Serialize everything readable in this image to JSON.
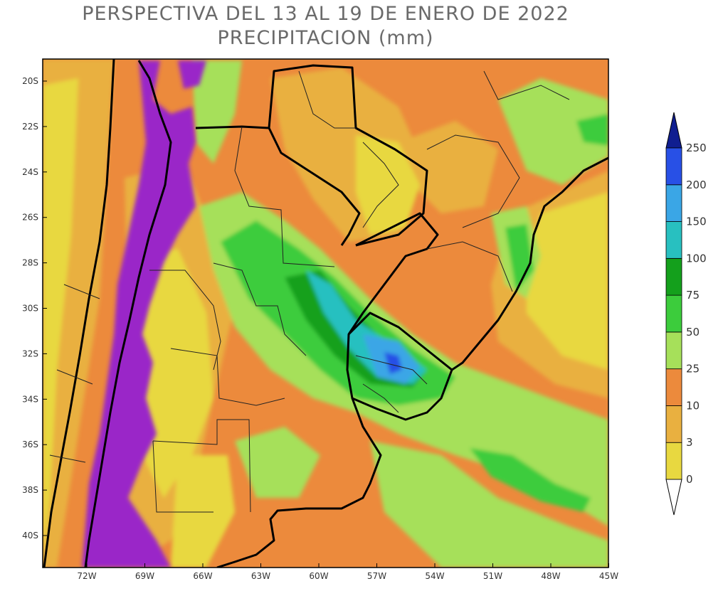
{
  "title": {
    "line1": "PERSPECTIVA DEL 13 AL 19 DE ENERO DE 2022",
    "line2": "PRECIPITACION (mm)"
  },
  "map": {
    "lat_ticks": [
      "20S",
      "22S",
      "24S",
      "26S",
      "28S",
      "30S",
      "32S",
      "34S",
      "36S",
      "38S",
      "40S"
    ],
    "lon_ticks": [
      "72W",
      "69W",
      "66W",
      "63W",
      "60W",
      "57W",
      "54W",
      "51W",
      "48W",
      "45W"
    ],
    "lon_range": [
      -74,
      -45
    ],
    "lat_range": [
      -41.5,
      -19.1
    ]
  },
  "colorbar": {
    "levels": [
      "0",
      "3",
      "10",
      "25",
      "50",
      "75",
      "100",
      "150",
      "200",
      "250"
    ],
    "colors": {
      "0-3": "#e8d840",
      "3-10": "#e9b040",
      "10-25": "#ec8a3c",
      "25-50": "#a6e05a",
      "50-75": "#3ccc3c",
      "75-100": "#14a01c",
      "100-150": "#28c0c0",
      "150-200": "#3aa6e6",
      "200-250": "#2850e6",
      "250+": "#101e90",
      "high-terrain": "#9a28c8"
    }
  }
}
